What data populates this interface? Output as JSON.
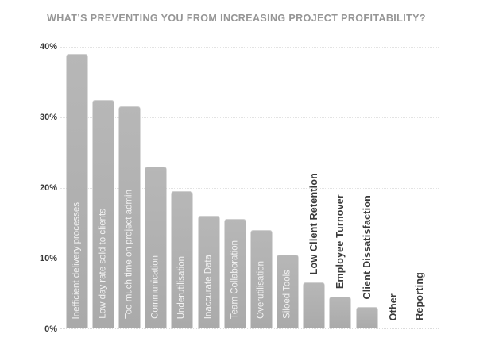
{
  "chart_data": {
    "type": "bar",
    "title": "WHAT’S PREVENTING YOU FROM INCREASING PROJECT PROFITABILITY?",
    "categories": [
      "Inefficient delivery processes",
      "Low day rate sold to clients",
      "Too much time on project admin",
      "Communication",
      "Underutilisation",
      "Inaccurate Data",
      "Team Collaboration",
      "Overutilisation",
      "Siloed Tools",
      "Low Client Retention",
      "Employee Turnover",
      "Client Dissatisfaction",
      "Other",
      "Reporting"
    ],
    "values": [
      39,
      32.5,
      31.5,
      23,
      19.5,
      16,
      15.5,
      14,
      10.5,
      6.5,
      4.5,
      3,
      0,
      0
    ],
    "label_placement": [
      "inside",
      "inside",
      "inside",
      "inside",
      "inside",
      "inside",
      "inside",
      "inside",
      "inside",
      "outside",
      "outside",
      "outside",
      "outside",
      "outside"
    ],
    "xlabel": "",
    "ylabel": "",
    "ylim": [
      0,
      40
    ],
    "ytick_labels": [
      "40%",
      "30%",
      "20%",
      "10%",
      "0%"
    ],
    "grid": "horizontal-dotted",
    "legend": "none",
    "colors": {
      "title_color": "#969696",
      "tick_color": "#3b3b3b",
      "grid_color": "#e3e3e3",
      "bar_color": "#afafaf",
      "inside_label_color": "#f2f2f2",
      "outside_label_color": "#3a3a3a"
    }
  }
}
